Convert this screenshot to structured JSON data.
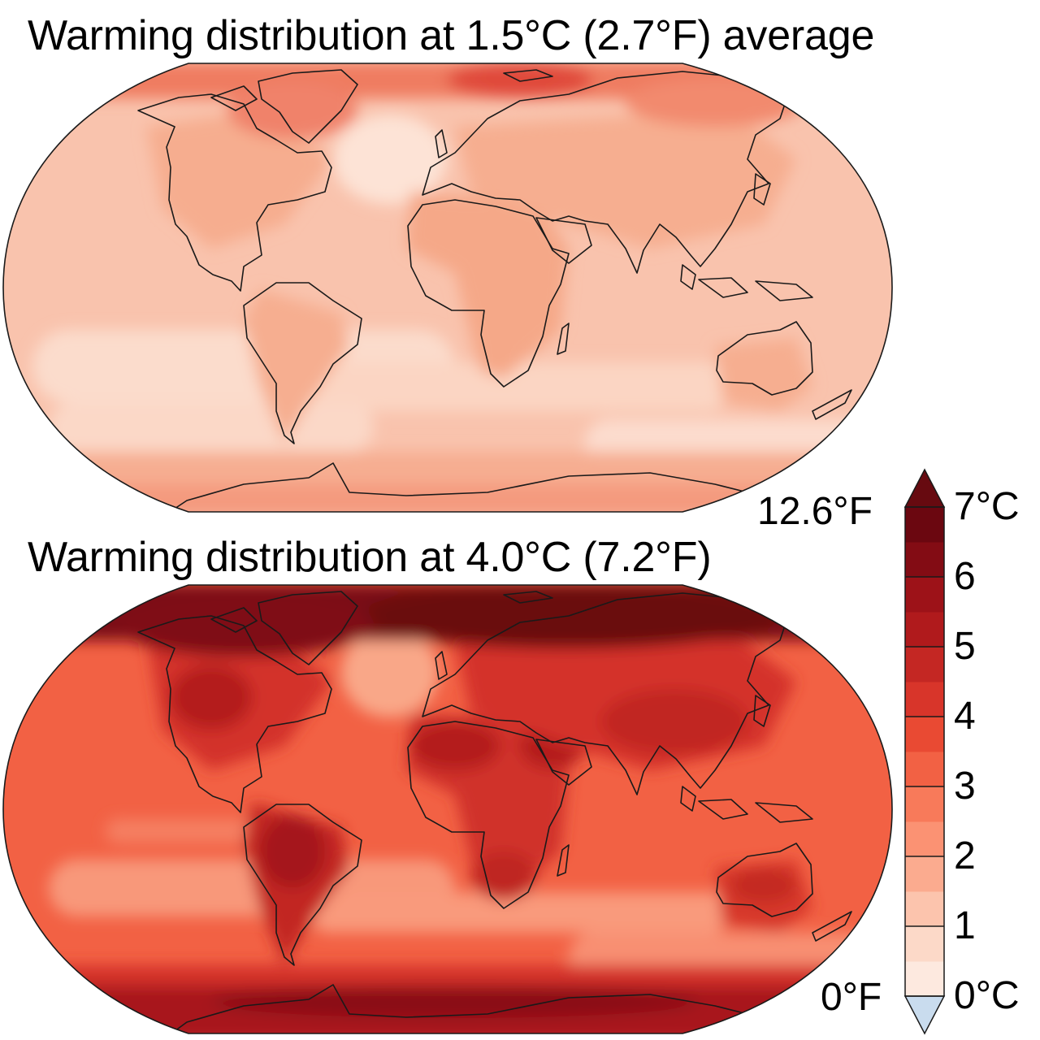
{
  "panels": [
    {
      "title": "Warming distribution at 1.5°C (2.7°F) average"
    },
    {
      "title": "Warming distribution at 4.0°C (7.2°F)"
    }
  ],
  "colorbar": {
    "celsius_ticks": [
      "0°C",
      "1",
      "2",
      "3",
      "4",
      "5",
      "6",
      "7°C"
    ],
    "fahrenheit_top": "12.6°F",
    "fahrenheit_bottom": "0°F",
    "range": [
      0,
      7
    ],
    "step": 0.5,
    "colors": [
      "#fde9df",
      "#fcd9c8",
      "#fcc4ad",
      "#fbab8f",
      "#fb9273",
      "#f87a5a",
      "#f26144",
      "#e94a33",
      "#d8352a",
      "#c42723",
      "#b01a1c",
      "#9d1218",
      "#830c14",
      "#6b0710"
    ],
    "extend_low_color": "#c9dcee",
    "extend_high_color": "#670a10"
  },
  "legend_colors": {
    "coastline": "#1a1a1a",
    "ocean_1_5": "#f9c3ad",
    "ocean_4_0": "#f26144"
  }
}
